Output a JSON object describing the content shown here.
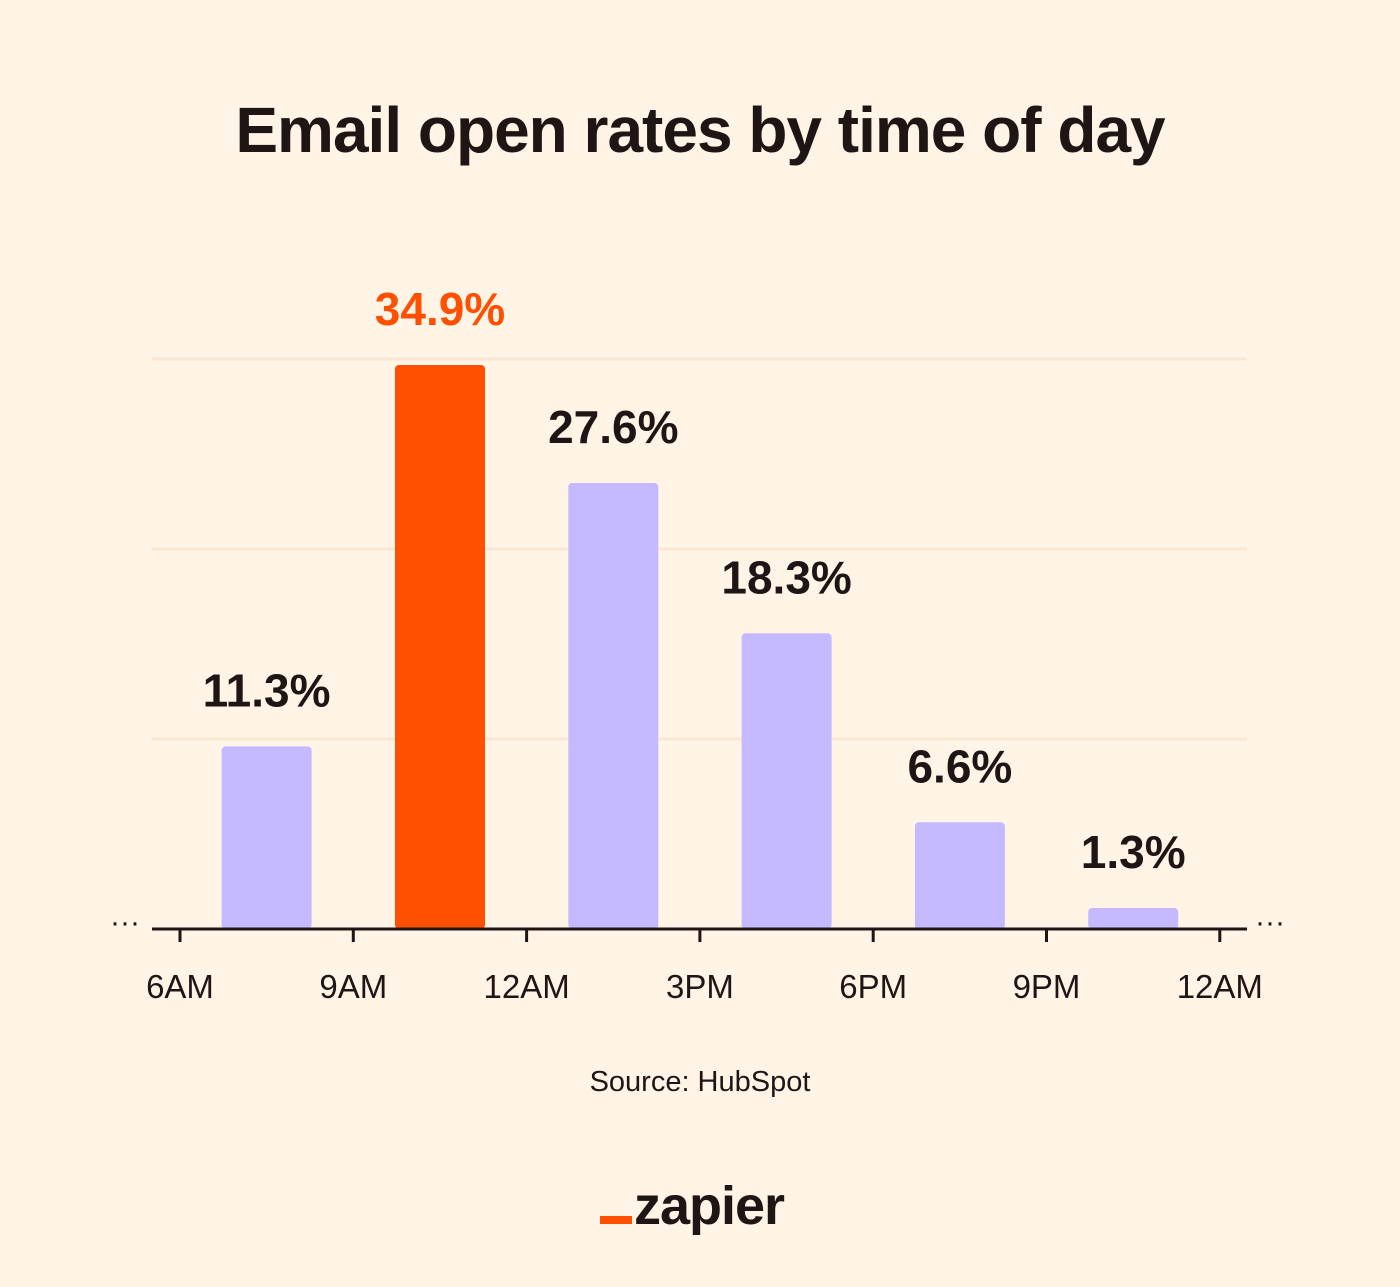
{
  "chart_data": {
    "type": "bar",
    "title": "Email open rates by time of day",
    "x_ticks": [
      "6AM",
      "9AM",
      "12AM",
      "3PM",
      "6PM",
      "9PM",
      "12AM"
    ],
    "categories": [
      "6AM–9AM",
      "9AM–12AM",
      "12AM–3PM",
      "3PM–6PM",
      "6PM–9PM",
      "9PM–12AM"
    ],
    "values": [
      11.3,
      34.9,
      27.6,
      18.3,
      6.6,
      1.3
    ],
    "value_labels": [
      "11.3%",
      "34.9%",
      "27.6%",
      "18.3%",
      "6.6%",
      "1.3%"
    ],
    "highlight_index": 1,
    "ylim": [
      0,
      35
    ],
    "grid": true,
    "colors": {
      "bar": "#C5BAFF",
      "highlight": "#FF4F00",
      "text": "#201515",
      "grid": "#FBE6D4",
      "background": "#FFF4E6"
    }
  },
  "source": "Source: HubSpot",
  "brand": {
    "name": "zapier"
  }
}
